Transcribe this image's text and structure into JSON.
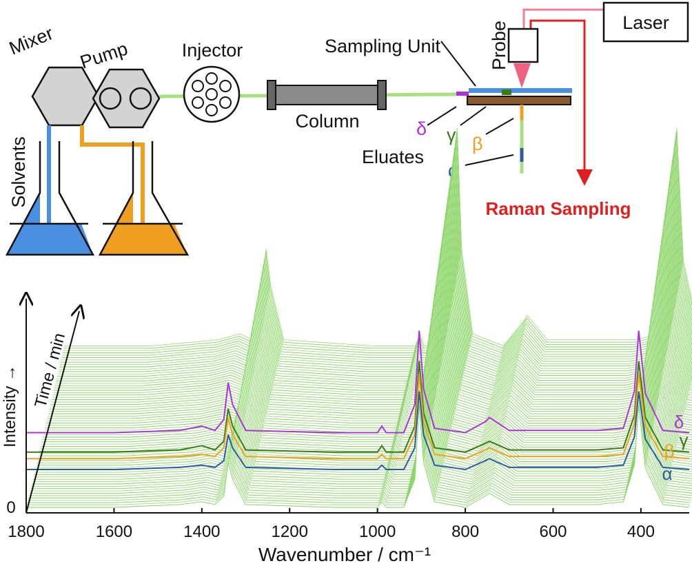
{
  "diagram": {
    "mixer": "Mixer",
    "pump": "Pump",
    "injector": "Injector",
    "sampling_unit": "Sampling Unit",
    "probe": "Probe",
    "laser": "Laser",
    "solvents": "Solvents",
    "column": "Column",
    "eluates": "Eluates",
    "raman_sampling": "Raman Sampling",
    "eluate_labels": [
      "δ",
      "γ",
      "β",
      "α"
    ]
  },
  "chart_data": {
    "type": "waterfall",
    "x_label": "Wavenumber / cm⁻¹",
    "y_label": "Intensity →",
    "z_label": "Time / min",
    "x": [
      1800,
      1600,
      1450,
      1400,
      1370,
      1350,
      1340,
      1330,
      1300,
      1100,
      1000,
      990,
      980,
      940,
      915,
      905,
      895,
      870,
      800,
      755,
      745,
      700,
      500,
      440,
      415,
      405,
      390,
      350,
      290
    ],
    "xlim": [
      1800,
      290
    ],
    "xticks": [
      1800,
      1600,
      1400,
      1200,
      1000,
      800,
      600,
      400
    ],
    "ylim": [
      0,
      100
    ],
    "yticks": [
      0
    ],
    "series": [
      {
        "name": "δ",
        "color": "#b030e0",
        "values": [
          37,
          37,
          38,
          40,
          38,
          43,
          60,
          50,
          38,
          37,
          37,
          40,
          37,
          37,
          50,
          84,
          57,
          39,
          37,
          42,
          44,
          38,
          38,
          39,
          56,
          84,
          55,
          38,
          37
        ]
      },
      {
        "name": "γ",
        "color": "#3a7a1a",
        "values": [
          28,
          28,
          29,
          31,
          29,
          33,
          48,
          40,
          29,
          28,
          28,
          31,
          28,
          28,
          40,
          70,
          46,
          30,
          28,
          32,
          33,
          29,
          29,
          30,
          45,
          70,
          44,
          29,
          28
        ]
      },
      {
        "name": "β",
        "color": "#f0a020",
        "values": [
          25,
          25,
          26,
          27,
          26,
          30,
          44,
          36,
          26,
          25,
          25,
          27,
          25,
          25,
          36,
          64,
          42,
          27,
          25,
          29,
          30,
          26,
          26,
          27,
          41,
          64,
          40,
          26,
          25
        ]
      },
      {
        "name": "α",
        "color": "#2a5aa8",
        "values": [
          20,
          20,
          21,
          22,
          21,
          24,
          36,
          30,
          21,
          20,
          20,
          22,
          20,
          20,
          30,
          56,
          36,
          22,
          20,
          24,
          25,
          21,
          21,
          22,
          35,
          56,
          34,
          21,
          20
        ]
      }
    ]
  }
}
